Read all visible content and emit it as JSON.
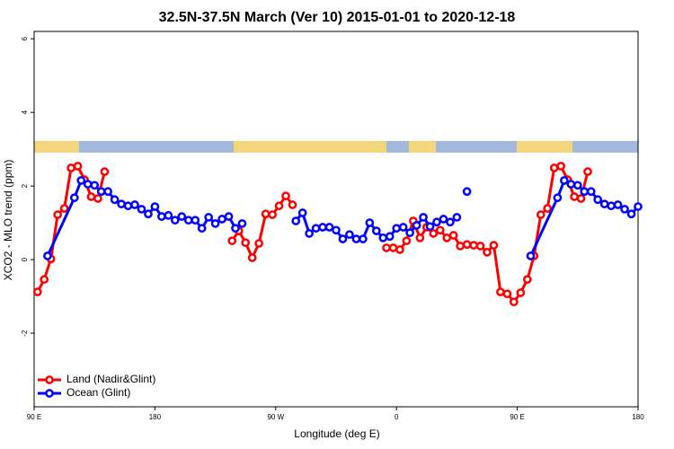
{
  "chart_data": {
    "type": "line",
    "title": "32.5N-37.5N March (Ver 10)   2015-01-01 to 2020-12-18",
    "x_label": "Longitude (deg E)",
    "y_label": "XCO2 - MLO trend (ppm)",
    "xlim": [
      90,
      540
    ],
    "ylim": [
      -4,
      6.2
    ],
    "xticks": [
      {
        "value": 90,
        "label": "90 E"
      },
      180,
      {
        "value": 270,
        "label": "90 W"
      },
      {
        "value": 360,
        "label": "0"
      },
      {
        "value": 450,
        "label": "90 E"
      },
      {
        "value": 540,
        "label": "180"
      }
    ],
    "yticks": [
      -2,
      0,
      2,
      4,
      6
    ],
    "legend": "bottom-left",
    "series": [
      {
        "name": "Land (Nadir&Glint)",
        "color": "#ff0000",
        "x": [
          92.5,
          97.5,
          102.5,
          107.5,
          112.5,
          117.5,
          122.5,
          127.5,
          132.5,
          137.5,
          142.5,
          null,
          237.5,
          242.5,
          247.5,
          252.5,
          257.5,
          262.5,
          267.5,
          272.5,
          277.5,
          282.5,
          null,
          352.5,
          357.5,
          362.5,
          367.5,
          372.5,
          377.5,
          382.5,
          387.5,
          392.5,
          397.5,
          402.5,
          407.5,
          412.5,
          417.5,
          422.5,
          427.5,
          432.5,
          437.5,
          442.5,
          447.5,
          452.5,
          457.5,
          462.5,
          467.5,
          472.5,
          477.5,
          482.5,
          487.5,
          492.5,
          497.5,
          502.5
        ],
        "values": [
          -0.88,
          -0.54,
          0.02,
          1.22,
          1.39,
          2.49,
          2.54,
          2.17,
          1.71,
          1.66,
          2.39,
          null,
          0.51,
          0.78,
          0.46,
          0.05,
          0.44,
          1.24,
          1.22,
          1.46,
          1.73,
          1.49,
          null,
          0.32,
          0.32,
          0.27,
          0.51,
          1.05,
          0.59,
          0.88,
          0.71,
          0.8,
          0.59,
          0.66,
          0.37,
          0.41,
          0.39,
          0.37,
          0.2,
          0.39,
          -0.88,
          -0.93,
          -1.15,
          -0.9,
          -0.54,
          0.1,
          1.22,
          1.39,
          2.49,
          2.54,
          2.17,
          1.71,
          1.66,
          2.39
        ]
      },
      {
        "name": "Ocean (Glint)",
        "color": "#0000ff",
        "x": [
          100,
          120,
          125,
          130,
          135,
          140,
          145,
          150,
          155,
          160,
          165,
          170,
          175,
          180,
          185,
          190,
          195,
          200,
          205,
          210,
          215,
          220,
          225,
          230,
          235,
          240,
          245,
          null,
          285,
          290,
          295,
          300,
          305,
          310,
          315,
          320,
          325,
          330,
          335,
          340,
          345,
          350,
          355,
          360,
          365,
          370,
          375,
          380,
          385,
          390,
          395,
          400,
          405,
          null,
          412.5,
          null,
          460,
          480,
          485,
          490,
          495,
          500,
          505,
          510,
          515,
          520,
          525,
          530,
          535,
          540
        ],
        "values": [
          0.1,
          1.68,
          2.15,
          2.05,
          2.02,
          1.85,
          1.85,
          1.63,
          1.51,
          1.46,
          1.49,
          1.37,
          1.24,
          1.44,
          1.17,
          1.2,
          1.07,
          1.17,
          1.07,
          1.07,
          0.85,
          1.15,
          0.98,
          1.1,
          1.17,
          0.85,
          0.98,
          null,
          1.05,
          1.27,
          0.71,
          0.85,
          0.88,
          0.88,
          0.8,
          0.56,
          0.68,
          0.56,
          0.56,
          1.0,
          0.78,
          0.59,
          0.63,
          0.85,
          0.88,
          0.73,
          0.93,
          1.15,
          0.9,
          1.02,
          1.1,
          1.02,
          1.15,
          null,
          1.85,
          null,
          0.1,
          1.68,
          2.15,
          2.05,
          2.02,
          1.85,
          1.85,
          1.63,
          1.51,
          1.46,
          1.49,
          1.37,
          1.24,
          1.44
        ]
      }
    ]
  }
}
